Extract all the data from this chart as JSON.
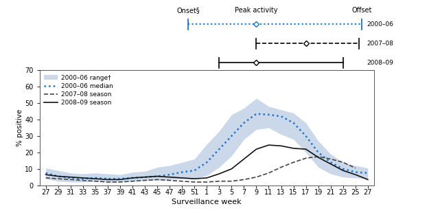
{
  "x_tick_labels": [
    "27",
    "29",
    "31",
    "33",
    "35",
    "37",
    "39",
    "41",
    "43",
    "45",
    "47",
    "49",
    "51",
    "1",
    "3",
    "5",
    "7",
    "9",
    "11",
    "13",
    "15",
    "17",
    "19",
    "21",
    "23",
    "25",
    "27"
  ],
  "ylim": [
    0,
    70
  ],
  "yticks": [
    0,
    10,
    20,
    30,
    40,
    50,
    60,
    70
  ],
  "ylabel": "% positive",
  "xlabel": "Surveillance week",
  "median_2000_06": [
    7.5,
    5.5,
    4.5,
    4.0,
    4.5,
    4.0,
    4.0,
    4.5,
    5.0,
    5.5,
    6.5,
    8.0,
    9.0,
    14.0,
    22.0,
    30.0,
    38.0,
    43.5,
    43.0,
    42.0,
    38.0,
    30.0,
    20.0,
    14.0,
    10.0,
    8.0,
    7.5
  ],
  "range_upper": [
    10.5,
    9.0,
    7.5,
    7.0,
    7.5,
    7.0,
    6.5,
    8.0,
    8.5,
    11.0,
    12.0,
    14.0,
    16.0,
    25.0,
    33.0,
    43.0,
    47.0,
    53.0,
    48.0,
    46.0,
    44.0,
    38.0,
    27.0,
    19.0,
    14.0,
    12.0,
    10.5
  ],
  "range_lower": [
    4.0,
    2.5,
    2.0,
    2.0,
    2.5,
    2.0,
    2.0,
    2.5,
    3.0,
    3.0,
    3.5,
    4.0,
    4.0,
    6.0,
    11.0,
    18.0,
    28.0,
    34.0,
    35.0,
    31.0,
    28.0,
    20.0,
    11.0,
    7.0,
    5.0,
    4.5,
    4.0
  ],
  "season_2007_08": [
    4.5,
    4.0,
    3.5,
    3.0,
    2.5,
    2.0,
    2.0,
    2.5,
    3.0,
    3.5,
    3.0,
    2.5,
    2.0,
    2.0,
    2.5,
    2.5,
    3.5,
    5.0,
    7.5,
    11.0,
    14.0,
    16.5,
    17.5,
    16.0,
    14.0,
    10.5,
    null
  ],
  "season_2008_09": [
    6.5,
    5.5,
    5.0,
    4.5,
    4.0,
    3.5,
    3.5,
    4.5,
    5.0,
    5.5,
    5.0,
    4.5,
    4.0,
    4.5,
    7.0,
    10.0,
    16.0,
    22.0,
    24.5,
    24.0,
    22.5,
    22.0,
    17.0,
    13.0,
    9.0,
    6.5,
    3.5
  ],
  "shade_color": "#b0c4de",
  "median_color": "#1874cd",
  "season0708_color": "#444444",
  "season0809_color": "#111111",
  "onset_label": "Onset§",
  "peak_label": "Peak activity",
  "offset_label": "Offset",
  "label_2000_06": "2000–06",
  "label_2007_08": "2007–08",
  "label_2008_09": "2008–09",
  "legend_range": "2000–06 range†",
  "legend_median": "2000–06 median",
  "legend_0708": "2007–08 season",
  "legend_0809": "2008–09 season",
  "n_points": 27
}
